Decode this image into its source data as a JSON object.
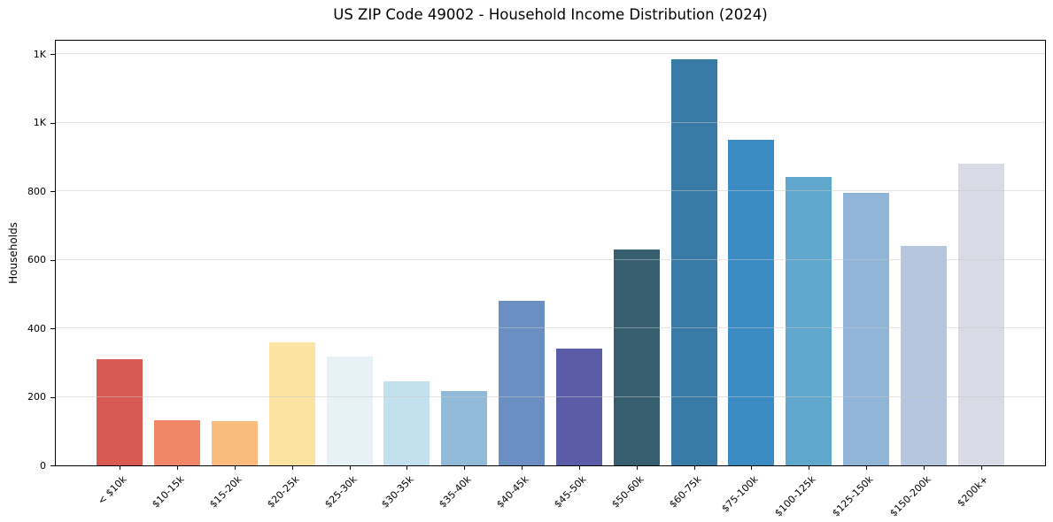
{
  "chart_data": {
    "type": "bar",
    "title": "US ZIP Code 49002 - Household Income Distribution (2024)",
    "xlabel": "",
    "ylabel": "Households",
    "categories": [
      "< $10k",
      "$10-15k",
      "$15-20k",
      "$20-25k",
      "$25-30k",
      "$30-35k",
      "$35-40k",
      "$40-45k",
      "$45-50k",
      "$50-60k",
      "$60-75k",
      "$75-100k",
      "$100-125k",
      "$125-150k",
      "$150-200k",
      "$200k+"
    ],
    "values": [
      310,
      131,
      129,
      359,
      318,
      245,
      216,
      481,
      342,
      630,
      1185,
      950,
      843,
      795,
      640,
      882
    ],
    "bar_colors": [
      "#d95a52",
      "#f28767",
      "#fabc7d",
      "#fde3a1",
      "#e7f2f7",
      "#c3e0ee",
      "#90bad8",
      "#6b8ec3",
      "#5b5ca8",
      "#375e6f",
      "#377ba6",
      "#3a8cc2",
      "#60a7cd",
      "#90b5d8",
      "#b6c6de",
      "#d8dae6"
    ],
    "ylim": [
      0,
      1240
    ],
    "yticks": [
      {
        "value": 0,
        "label": "0"
      },
      {
        "value": 200,
        "label": "200"
      },
      {
        "value": 400,
        "label": "400"
      },
      {
        "value": 600,
        "label": "600"
      },
      {
        "value": 800,
        "label": "800"
      },
      {
        "value": 1000,
        "label": "1K"
      },
      {
        "value": 1200,
        "label": "1K"
      }
    ],
    "grid": "horizontal, drawn above bars",
    "legend_position": "none",
    "spine_color": "#000000",
    "background_color": "#ffffff"
  }
}
